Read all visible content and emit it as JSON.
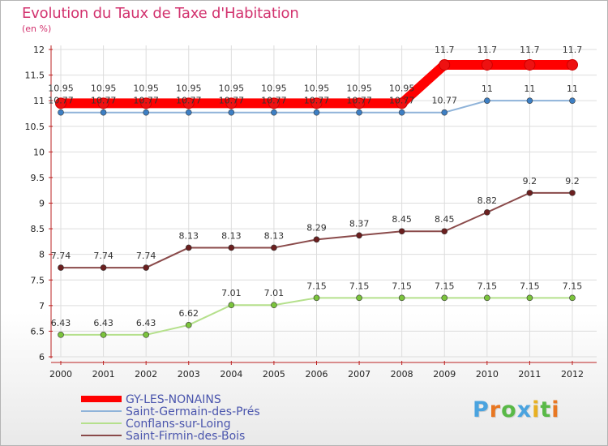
{
  "header": {
    "title": "Evolution du Taux de Taxe d'Habitation",
    "unit": "(en %)"
  },
  "logo": {
    "text": "Proxiti"
  },
  "colors": {
    "title": "#d2326e",
    "grid": "#dddddd",
    "legend_text": "#4a55ad"
  },
  "chart_data": {
    "type": "line",
    "title": "Evolution du Taux de Taxe d'Habitation",
    "ylabel": "(en %)",
    "xlabel": "",
    "x": [
      "2000",
      "2001",
      "2002",
      "2003",
      "2004",
      "2005",
      "2006",
      "2007",
      "2008",
      "2009",
      "2010",
      "2011",
      "2012"
    ],
    "ylim": [
      6,
      12
    ],
    "yticks": [
      "6",
      "6.5",
      "7",
      "7.5",
      "8",
      "8.5",
      "9",
      "9.5",
      "10",
      "10.5",
      "11",
      "11.5",
      "12"
    ],
    "grid": true,
    "legend_position": "bottom-left",
    "series": [
      {
        "name": "GY-LES-NONAINS",
        "color": "#ff0000",
        "marker_color": "#ee1111",
        "style": "thick",
        "values": [
          10.95,
          10.95,
          10.95,
          10.95,
          10.95,
          10.95,
          10.95,
          10.95,
          10.95,
          11.7,
          11.7,
          11.7,
          11.7
        ],
        "labels": [
          "10.95",
          "10.95",
          "10.95",
          "10.95",
          "10.95",
          "10.95",
          "10.95",
          "10.95",
          "10.95",
          "11.7",
          "11.7",
          "11.7",
          "11.7"
        ]
      },
      {
        "name": "Saint-Germain-des-Prés",
        "color": "#8fb3d9",
        "marker_color": "#3d7fc4",
        "style": "thin",
        "values": [
          10.77,
          10.77,
          10.77,
          10.77,
          10.77,
          10.77,
          10.77,
          10.77,
          10.77,
          10.77,
          11,
          11,
          11
        ],
        "labels": [
          "10.77",
          "10.77",
          "10.77",
          "10.77",
          "10.77",
          "10.77",
          "10.77",
          "10.77",
          "10.77",
          "10.77",
          "11",
          "11",
          "11"
        ]
      },
      {
        "name": "Conflans-sur-Loing",
        "color": "#b5e08c",
        "marker_color": "#7bc43c",
        "style": "thin",
        "values": [
          6.43,
          6.43,
          6.43,
          6.62,
          7.01,
          7.01,
          7.15,
          7.15,
          7.15,
          7.15,
          7.15,
          7.15,
          7.15
        ],
        "labels": [
          "6.43",
          "6.43",
          "6.43",
          "6.62",
          "7.01",
          "7.01",
          "7.15",
          "7.15",
          "7.15",
          "7.15",
          "7.15",
          "7.15",
          "7.15"
        ]
      },
      {
        "name": "Saint-Firmin-des-Bois",
        "color": "#8a4a4a",
        "marker_color": "#6b1f1f",
        "style": "thin",
        "values": [
          7.74,
          7.74,
          7.74,
          8.13,
          8.13,
          8.13,
          8.29,
          8.37,
          8.45,
          8.45,
          8.82,
          9.2,
          9.2
        ],
        "labels": [
          "7.74",
          "7.74",
          "7.74",
          "8.13",
          "8.13",
          "8.13",
          "8.29",
          "8.37",
          "8.45",
          "8.45",
          "8.82",
          "9.2",
          "9.2"
        ]
      }
    ]
  }
}
